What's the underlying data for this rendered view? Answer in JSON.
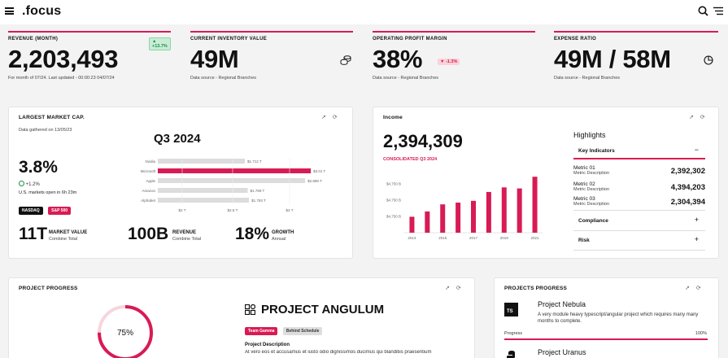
{
  "app": {
    "logo": ".focus"
  },
  "kpis": [
    {
      "title": "REVENUE (MONTH)",
      "value": "2,203,493",
      "sub": "For month of 07/24. Last updated - 00:00:23 04/07/24",
      "badge": "▲ +13.7%"
    },
    {
      "title": "CURRENT INVENTORY VALUE",
      "value": "49M",
      "sub": "Data source - Regional Branches"
    },
    {
      "title": "OPERATING PROFIT MARGIN",
      "value": "38%",
      "sub": "Data source - Regional Branches",
      "badge": "▼ -1.3%"
    },
    {
      "title": "EXPENSE RATIO",
      "value": "49M / 58M",
      "sub": "Data source - Regional Branches"
    }
  ],
  "market": {
    "title": "LARGEST MARKET CAP.",
    "gathered": "Data gathered on 13/05/23",
    "quarter": "Q3 2024",
    "big_pct": "3.8%",
    "change": "+1.2%",
    "open_info": "U.S. markets open in 6h 23m",
    "tags": [
      "NASDAQ",
      "S&P 500"
    ],
    "stats": [
      {
        "value": "11T",
        "label": "MARKET VALUE",
        "sub": "Combine Total"
      },
      {
        "value": "100B",
        "label": "REVENUE",
        "sub": "Combine Total"
      },
      {
        "value": "18%",
        "label": "GROWTH",
        "sub": "Annual"
      }
    ]
  },
  "market_chart": {
    "type": "bar",
    "orientation": "horizontal",
    "categories": [
      "Nvidia",
      "Microsoft",
      "Apple",
      "Amazon",
      "Alphabet"
    ],
    "value_labels": [
      "$1.712 T",
      "$3.01 T",
      "$2.898 T",
      "$1.769 T",
      "$1.793 T"
    ],
    "values": [
      1.712,
      3.01,
      2.898,
      1.769,
      1.793
    ],
    "highlight_index": 1,
    "xticks": [
      "$2 T",
      "$2.5 T",
      "$3 T"
    ]
  },
  "income": {
    "title": "Income",
    "value": "2,394,309",
    "caption": "CONSOLIDATED Q3 2024",
    "highlights_title": "Highlights",
    "key_indicators": "Key Indicators",
    "metrics": [
      {
        "name": "Metric 01",
        "desc": "Metric Description",
        "value": "2,392,302"
      },
      {
        "name": "Metric 02",
        "desc": "Metric Description",
        "value": "4,394,203"
      },
      {
        "name": "Metric 03",
        "desc": "Metric Description",
        "value": "2,304,394"
      }
    ],
    "sections": [
      "Compliance",
      "Risk"
    ]
  },
  "chart_data": {
    "type": "bar",
    "x": [
      2013,
      2014,
      2015,
      2016,
      2017,
      2018,
      2019,
      2020,
      2021
    ],
    "values": [
      3.85,
      4.0,
      4.2,
      4.25,
      4.3,
      4.55,
      4.68,
      4.65,
      4.98
    ],
    "xticks": [
      "2013",
      "2015",
      "2017",
      "2019",
      "2021"
    ],
    "yticks": [
      "$4,750 B",
      "$4,750 B",
      "$4,750 B",
      "$4,750 B"
    ],
    "color": "#d81b55"
  },
  "project_progress": {
    "title": "PROJECT PROGRESS",
    "percent": "75%",
    "progress_fraction": 0.75,
    "name": "PROJECT ANGULUM",
    "tags": [
      "Team Gamma",
      "Behind Schedule"
    ],
    "desc_title": "Project Description",
    "desc": "At vero eos et accusamus et iusto odio dignissimos ducimus qui blanditiis praesentium"
  },
  "projects": {
    "title": "PROJECTS PROGRESS",
    "items": [
      {
        "name": "Project Nebula",
        "icon_text": "TS",
        "desc": "A very module heavy typescript/angular project which requires many many months to complete.",
        "progress_label": "Progress",
        "progress_value": "100%",
        "progress_fraction": 1.0
      },
      {
        "name": "Project Uranus"
      }
    ]
  },
  "colors": {
    "accent": "#d81b55",
    "green": "#1a8f48"
  }
}
